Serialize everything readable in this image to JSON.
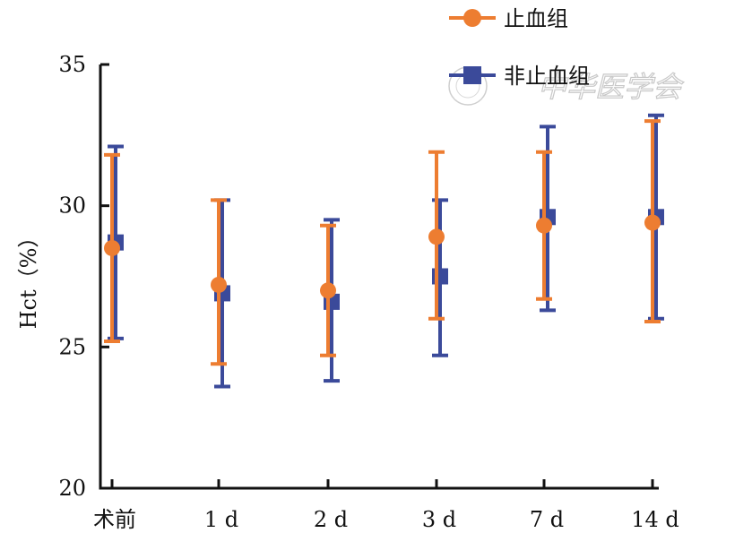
{
  "chart_data": {
    "type": "scatter",
    "title": "",
    "xlabel": "",
    "ylabel": "Hct（%）",
    "ylim": [
      20,
      35
    ],
    "yticks": [
      20,
      25,
      30,
      35
    ],
    "categories": [
      "术前",
      "1 d",
      "2 d",
      "3 d",
      "7 d",
      "14 d"
    ],
    "series": [
      {
        "name": "止血组",
        "color": "#ED7D31",
        "marker": "circle",
        "values": [
          28.5,
          27.2,
          27.0,
          28.9,
          29.3,
          29.4
        ],
        "error_low": [
          25.2,
          24.4,
          24.7,
          26.0,
          26.7,
          25.9
        ],
        "error_high": [
          31.8,
          30.2,
          29.3,
          31.9,
          31.9,
          33.0
        ]
      },
      {
        "name": "非止血组",
        "color": "#3B4A9A",
        "marker": "square",
        "values": [
          28.7,
          26.9,
          26.6,
          27.5,
          29.6,
          29.6
        ],
        "error_low": [
          25.3,
          23.6,
          23.8,
          24.7,
          26.3,
          26.0
        ],
        "error_high": [
          32.1,
          30.2,
          29.5,
          30.2,
          32.8,
          33.2
        ]
      }
    ],
    "legend_position": "top-right",
    "grid": false
  },
  "watermark": {
    "text": "中华医学会"
  }
}
